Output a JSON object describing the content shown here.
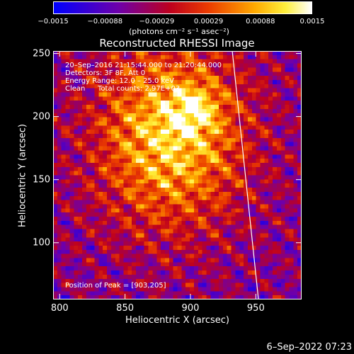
{
  "colorbar": {
    "ticks": [
      "−0.0015",
      "−0.00088",
      "−0.00029",
      "0.00029",
      "0.00088",
      "0.0015"
    ],
    "units": "(photons cm⁻² s⁻¹ asec⁻²)"
  },
  "annotations": {
    "time_range": "20–Sep–2016 21:15:44.000 to 21:20:44.000",
    "detectors": "Detectors: 3F 8F, Att 0",
    "energy_range": "Energy Range: 12.0 – 25.0 keV",
    "clean_label": "Clean",
    "total_counts": "Total counts: 2.97E+03",
    "peak": "Position of Peak = [903,205]"
  },
  "footer": {
    "date": "6–Sep–2022 07:23"
  },
  "colors": {
    "background": "#000000",
    "text": "#ffffff"
  },
  "chart_data": {
    "type": "heatmap",
    "title": "Reconstructed RHESSI Image",
    "xlabel": "Heliocentric X (arcsec)",
    "ylabel": "Heliocentric Y (arcsec)",
    "xlim": [
      795,
      985
    ],
    "ylim": [
      55,
      252
    ],
    "xticks": [
      800,
      850,
      900,
      950
    ],
    "yticks": [
      100,
      150,
      200,
      250
    ],
    "colorbar_range": [
      -0.0015,
      0.0015
    ],
    "colormap": "blue–purple–red–yellow–white",
    "peak": [
      903,
      205
    ],
    "limb_line": [
      [
        932,
        252
      ],
      [
        952,
        55
      ]
    ]
  }
}
